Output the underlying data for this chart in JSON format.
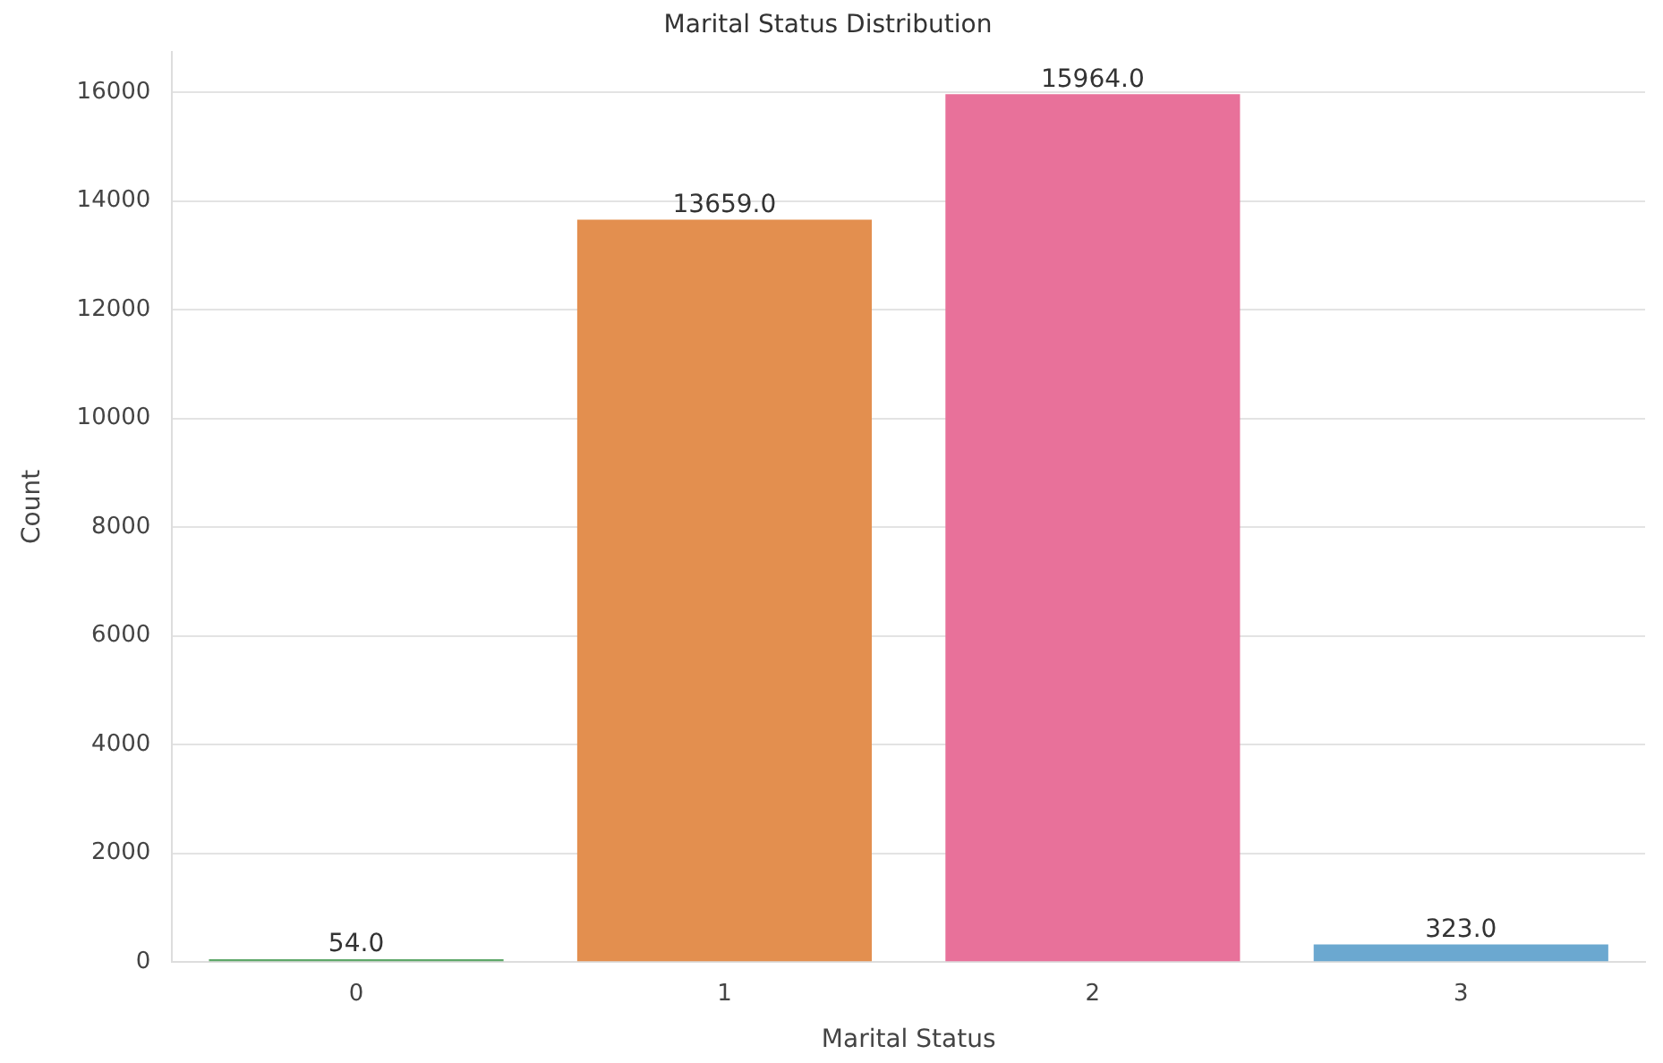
{
  "chart_data": {
    "type": "bar",
    "title": "Marital Status Distribution",
    "xlabel": "Marital Status",
    "ylabel": "Count",
    "categories": [
      "0",
      "1",
      "2",
      "3"
    ],
    "values": [
      54,
      13659,
      15964,
      323
    ],
    "colors": [
      "#5fa86a",
      "#e38f4f",
      "#e8719a",
      "#6ba8d0"
    ],
    "value_labels": [
      "54.0",
      "13659.0",
      "15964.0",
      "323.0"
    ],
    "ylim": [
      0,
      16750
    ],
    "yticks": [
      0,
      2000,
      4000,
      6000,
      8000,
      10000,
      12000,
      14000,
      16000
    ],
    "grid": "y",
    "legend": false
  }
}
